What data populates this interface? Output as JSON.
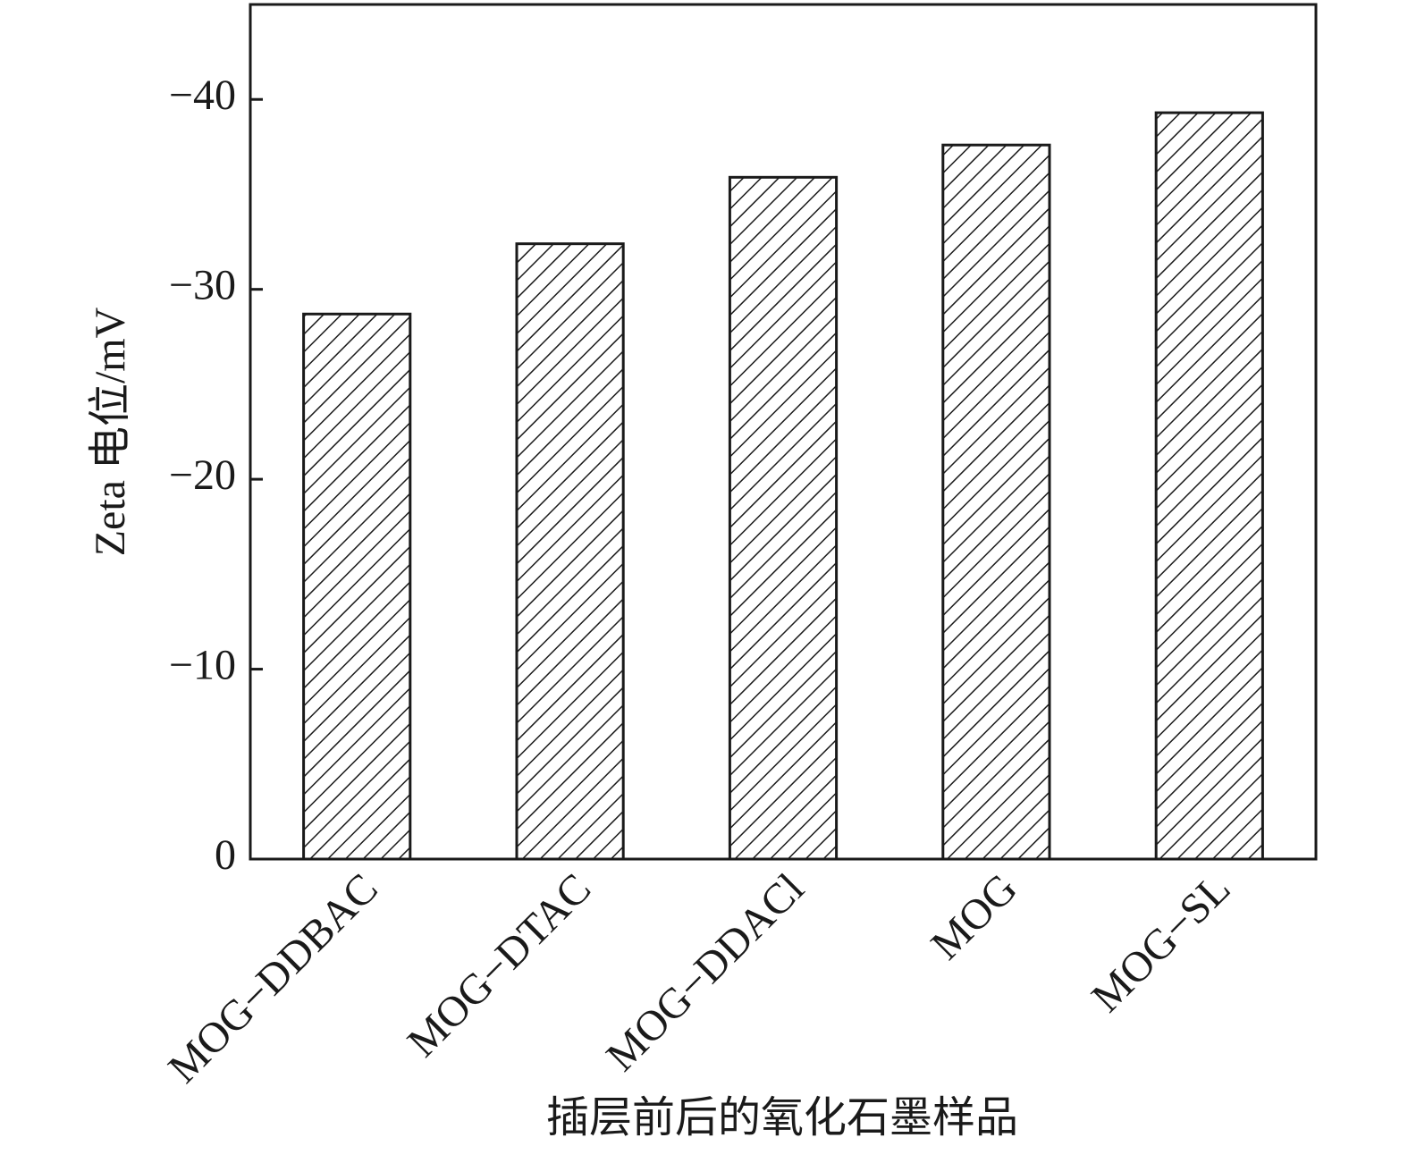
{
  "chart_data": {
    "type": "bar",
    "xlabel": "插层前后的氧化石墨样品",
    "ylabel": "Zeta 电位/mV",
    "categories": [
      "MOG−DDBAC",
      "MOG−DTAC",
      "MOG−DDACl",
      "MOG",
      "MOG−SL"
    ],
    "values": [
      -28.7,
      -32.4,
      -35.9,
      -37.6,
      -39.3
    ],
    "color": "#1a1a1a",
    "hatch": true,
    "ylim": [
      0,
      -45
    ],
    "yticks": [
      0,
      {
        "value": -10,
        "label": "−10"
      },
      {
        "value": -20,
        "label": "−20"
      },
      {
        "value": -30,
        "label": "−30"
      },
      {
        "value": -40,
        "label": "−40"
      }
    ],
    "grid": false
  }
}
